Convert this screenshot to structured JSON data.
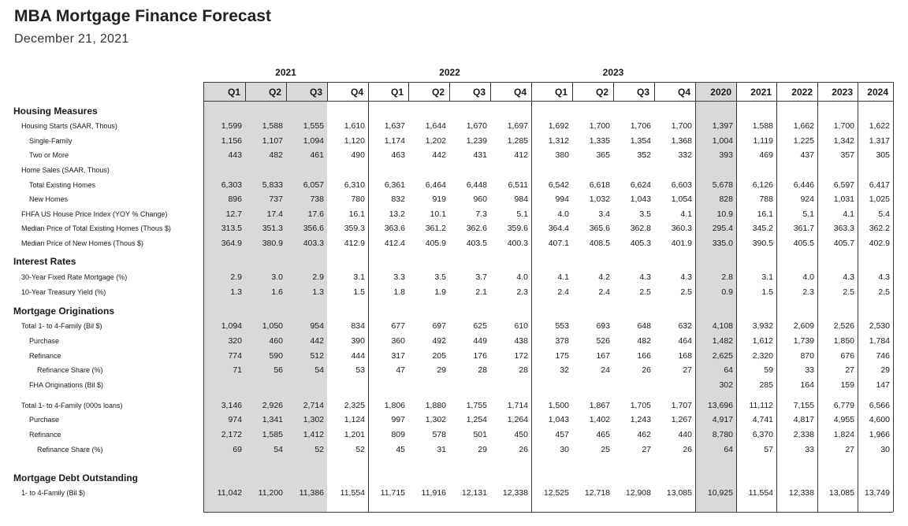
{
  "title": "MBA Mortgage Finance Forecast",
  "subtitle": "December 21, 2021",
  "years": [
    "2021",
    "2022",
    "2023"
  ],
  "columns": [
    "Q1",
    "Q2",
    "Q3",
    "Q4",
    "Q1",
    "Q2",
    "Q3",
    "Q4",
    "Q1",
    "Q2",
    "Q3",
    "Q4",
    "2020",
    "2021",
    "2022",
    "2023",
    "2024"
  ],
  "shade_color": "#d9d9d9",
  "sections": [
    {
      "title": "Housing Measures",
      "rows": [
        {
          "label": "Housing Starts (SAAR, Thous)",
          "indent": 1,
          "values": [
            "1,599",
            "1,588",
            "1,555",
            "1,610",
            "1,637",
            "1,644",
            "1,670",
            "1,697",
            "1,692",
            "1,700",
            "1,706",
            "1,700",
            "1,397",
            "1,588",
            "1,662",
            "1,700",
            "1,622"
          ]
        },
        {
          "label": "Single-Family",
          "indent": 2,
          "values": [
            "1,156",
            "1,107",
            "1,094",
            "1,120",
            "1,174",
            "1,202",
            "1,239",
            "1,285",
            "1,312",
            "1,335",
            "1,354",
            "1,368",
            "1,004",
            "1,119",
            "1,225",
            "1,342",
            "1,317"
          ]
        },
        {
          "label": "Two or More",
          "indent": 2,
          "values": [
            "443",
            "482",
            "461",
            "490",
            "463",
            "442",
            "431",
            "412",
            "380",
            "365",
            "352",
            "332",
            "393",
            "469",
            "437",
            "357",
            "305"
          ]
        },
        {
          "label": "Home Sales (SAAR, Thous)",
          "indent": 1,
          "values": []
        },
        {
          "label": "Total Existing Homes",
          "indent": 2,
          "values": [
            "6,303",
            "5,833",
            "6,057",
            "6,310",
            "6,361",
            "6,464",
            "6,448",
            "6,511",
            "6,542",
            "6,618",
            "6,624",
            "6,603",
            "5,678",
            "6,126",
            "6,446",
            "6,597",
            "6,417"
          ]
        },
        {
          "label": "New Homes",
          "indent": 2,
          "values": [
            "896",
            "737",
            "738",
            "780",
            "832",
            "919",
            "960",
            "984",
            "994",
            "1,032",
            "1,043",
            "1,054",
            "828",
            "788",
            "924",
            "1,031",
            "1,025"
          ]
        },
        {
          "label": "FHFA US House Price Index (YOY % Change)",
          "indent": 1,
          "values": [
            "12.7",
            "17.4",
            "17.6",
            "16.1",
            "13.2",
            "10.1",
            "7.3",
            "5.1",
            "4.0",
            "3.4",
            "3.5",
            "4.1",
            "10.9",
            "16.1",
            "5.1",
            "4.1",
            "5.4"
          ]
        },
        {
          "label": "Median Price of Total Existing Homes (Thous $)",
          "indent": 1,
          "values": [
            "313.5",
            "351.3",
            "356.6",
            "359.3",
            "363.6",
            "361.2",
            "362.6",
            "359.6",
            "364.4",
            "365.6",
            "362.8",
            "360.3",
            "295.4",
            "345.2",
            "361.7",
            "363.3",
            "362.2"
          ]
        },
        {
          "label": "Median Price of New Homes (Thous $)",
          "indent": 1,
          "values": [
            "364.9",
            "380.9",
            "403.3",
            "412.9",
            "412.4",
            "405.9",
            "403.5",
            "400.3",
            "407.1",
            "408.5",
            "405.3",
            "401.9",
            "335.0",
            "390.5",
            "405.5",
            "405.7",
            "402.9"
          ]
        }
      ]
    },
    {
      "title": "Interest Rates",
      "rows": [
        {
          "label": "30-Year Fixed Rate Mortgage (%)",
          "indent": 1,
          "values": [
            "2.9",
            "3.0",
            "2.9",
            "3.1",
            "3.3",
            "3.5",
            "3.7",
            "4.0",
            "4.1",
            "4.2",
            "4.3",
            "4.3",
            "2.8",
            "3.1",
            "4.0",
            "4.3",
            "4.3"
          ]
        },
        {
          "label": "10-Year Treasury Yield (%)",
          "indent": 1,
          "values": [
            "1.3",
            "1.6",
            "1.3",
            "1.5",
            "1.8",
            "1.9",
            "2.1",
            "2.3",
            "2.4",
            "2.4",
            "2.5",
            "2.5",
            "0.9",
            "1.5",
            "2.3",
            "2.5",
            "2.5"
          ]
        }
      ]
    },
    {
      "title": "Mortgage Originations",
      "rows": [
        {
          "label": "Total 1- to 4-Family (Bil $)",
          "indent": 1,
          "values": [
            "1,094",
            "1,050",
            "954",
            "834",
            "677",
            "697",
            "625",
            "610",
            "553",
            "693",
            "648",
            "632",
            "4,108",
            "3,932",
            "2,609",
            "2,526",
            "2,530"
          ]
        },
        {
          "label": "Purchase",
          "indent": 2,
          "values": [
            "320",
            "460",
            "442",
            "390",
            "360",
            "492",
            "449",
            "438",
            "378",
            "526",
            "482",
            "464",
            "1,482",
            "1,612",
            "1,739",
            "1,850",
            "1,784"
          ]
        },
        {
          "label": "Refinance",
          "indent": 2,
          "values": [
            "774",
            "590",
            "512",
            "444",
            "317",
            "205",
            "176",
            "172",
            "175",
            "167",
            "166",
            "168",
            "2,625",
            "2,320",
            "870",
            "676",
            "746"
          ]
        },
        {
          "label": "Refinance Share (%)",
          "indent": 3,
          "values": [
            "71",
            "56",
            "54",
            "53",
            "47",
            "29",
            "28",
            "28",
            "32",
            "24",
            "26",
            "27",
            "64",
            "59",
            "33",
            "27",
            "29"
          ]
        },
        {
          "label": "FHA Originations (Bil $)",
          "indent": 2,
          "values": [
            "",
            "",
            "",
            "",
            "",
            "",
            "",
            "",
            "",
            "",
            "",
            "",
            "302",
            "285",
            "164",
            "159",
            "147"
          ]
        },
        {
          "label": "Total 1- to 4-Family (000s loans)",
          "indent": 1,
          "values": [
            "3,146",
            "2,926",
            "2,714",
            "2,325",
            "1,806",
            "1,880",
            "1,755",
            "1,714",
            "1,500",
            "1,867",
            "1,705",
            "1,707",
            "13,696",
            "11,112",
            "7,155",
            "6,779",
            "6,566"
          ]
        },
        {
          "label": "Purchase",
          "indent": 2,
          "values": [
            "974",
            "1,341",
            "1,302",
            "1,124",
            "997",
            "1,302",
            "1,254",
            "1,264",
            "1,043",
            "1,402",
            "1,243",
            "1,267",
            "4,917",
            "4,741",
            "4,817",
            "4,955",
            "4,600"
          ]
        },
        {
          "label": "Refinance",
          "indent": 2,
          "values": [
            "2,172",
            "1,585",
            "1,412",
            "1,201",
            "809",
            "578",
            "501",
            "450",
            "457",
            "465",
            "462",
            "440",
            "8,780",
            "6,370",
            "2,338",
            "1,824",
            "1,966"
          ]
        },
        {
          "label": "Refinance Share (%)",
          "indent": 3,
          "values": [
            "69",
            "54",
            "52",
            "52",
            "45",
            "31",
            "29",
            "26",
            "30",
            "25",
            "27",
            "26",
            "64",
            "57",
            "33",
            "27",
            "30"
          ]
        }
      ]
    },
    {
      "title": "Mortgage Debt Outstanding",
      "rows": [
        {
          "label": "1- to 4-Family (Bil $)",
          "indent": 1,
          "values": [
            "11,042",
            "11,200",
            "11,386",
            "11,554",
            "11,715",
            "11,916",
            "12,131",
            "12,338",
            "12,525",
            "12,718",
            "12,908",
            "13,085",
            "10,925",
            "11,554",
            "12,338",
            "13,085",
            "13,749"
          ]
        }
      ]
    }
  ]
}
